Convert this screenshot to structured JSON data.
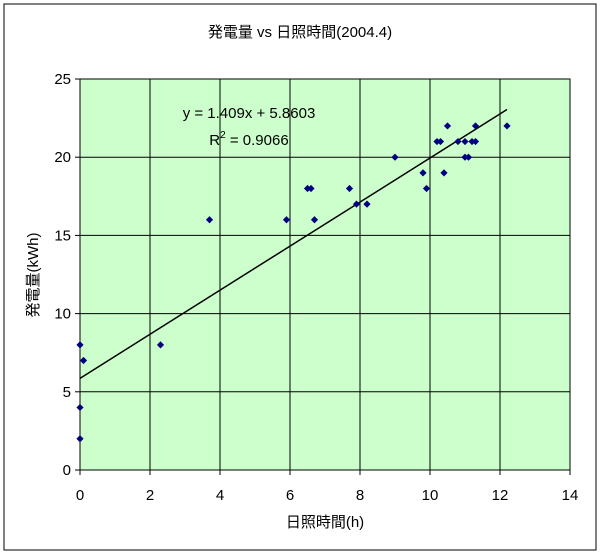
{
  "chart_data": {
    "type": "scatter",
    "title": "発電量 vs 日照時間(2004.4)",
    "xlabel": "日照時間(h)",
    "ylabel": "発電量(kWh)",
    "xlim": [
      0,
      14
    ],
    "ylim": [
      0,
      25
    ],
    "x_ticks": [
      "0",
      "2",
      "4",
      "6",
      "8",
      "10",
      "12",
      "14"
    ],
    "y_ticks": [
      "0",
      "5",
      "10",
      "15",
      "20",
      "25"
    ],
    "grid": true,
    "legend": "none",
    "plot_background": "#ccffcc",
    "marker_color": "#000080",
    "trendline_color": "#000000",
    "series": [
      {
        "points": [
          [
            0,
            2
          ],
          [
            0,
            4
          ],
          [
            0,
            8
          ],
          [
            0.1,
            7
          ],
          [
            2.3,
            8
          ],
          [
            3.7,
            16
          ],
          [
            5.9,
            16
          ],
          [
            6.5,
            18
          ],
          [
            6.6,
            18
          ],
          [
            6.7,
            16
          ],
          [
            7.7,
            18
          ],
          [
            7.9,
            17
          ],
          [
            8.2,
            17
          ],
          [
            9.0,
            20
          ],
          [
            9.8,
            19
          ],
          [
            9.9,
            18
          ],
          [
            10.2,
            21
          ],
          [
            10.3,
            21
          ],
          [
            10.4,
            19
          ],
          [
            10.5,
            22
          ],
          [
            10.8,
            21
          ],
          [
            11.0,
            21
          ],
          [
            11.0,
            20
          ],
          [
            11.1,
            20
          ],
          [
            11.2,
            21
          ],
          [
            11.3,
            22
          ],
          [
            11.3,
            21
          ],
          [
            12.2,
            22
          ]
        ]
      }
    ],
    "trendline": {
      "slope": 1.409,
      "intercept": 5.8603,
      "x_range": [
        0,
        12.2
      ],
      "equation": "y = 1.409x + 5.8603",
      "r2_label": "R",
      "r2_sup": "2",
      "r2_value": " = 0.9066"
    }
  }
}
